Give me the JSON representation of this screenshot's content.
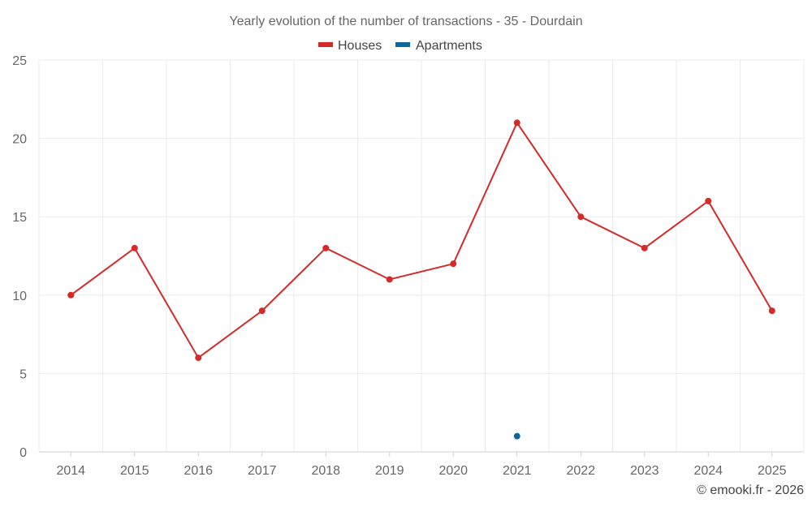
{
  "chart_data": {
    "type": "line",
    "title": "Yearly evolution of the number of transactions - 35 - Dourdain",
    "categories": [
      "2014",
      "2015",
      "2016",
      "2017",
      "2018",
      "2019",
      "2020",
      "2021",
      "2022",
      "2023",
      "2024",
      "2025"
    ],
    "series": [
      {
        "name": "Houses",
        "color": "#d42a2a",
        "values": [
          10,
          13,
          6,
          9,
          13,
          11,
          12,
          21,
          15,
          13,
          16,
          9
        ]
      },
      {
        "name": "Apartments",
        "color": "#0e6699",
        "values": [
          null,
          null,
          null,
          null,
          null,
          null,
          null,
          1,
          null,
          null,
          null,
          null
        ]
      }
    ],
    "ylim": [
      0,
      25
    ],
    "yticks": [
      "0",
      "5",
      "10",
      "15",
      "20",
      "25"
    ],
    "xlabel": "",
    "ylabel": "",
    "grid": true,
    "legend_position": "top-center"
  },
  "credit": "© emooki.fr - 2026"
}
